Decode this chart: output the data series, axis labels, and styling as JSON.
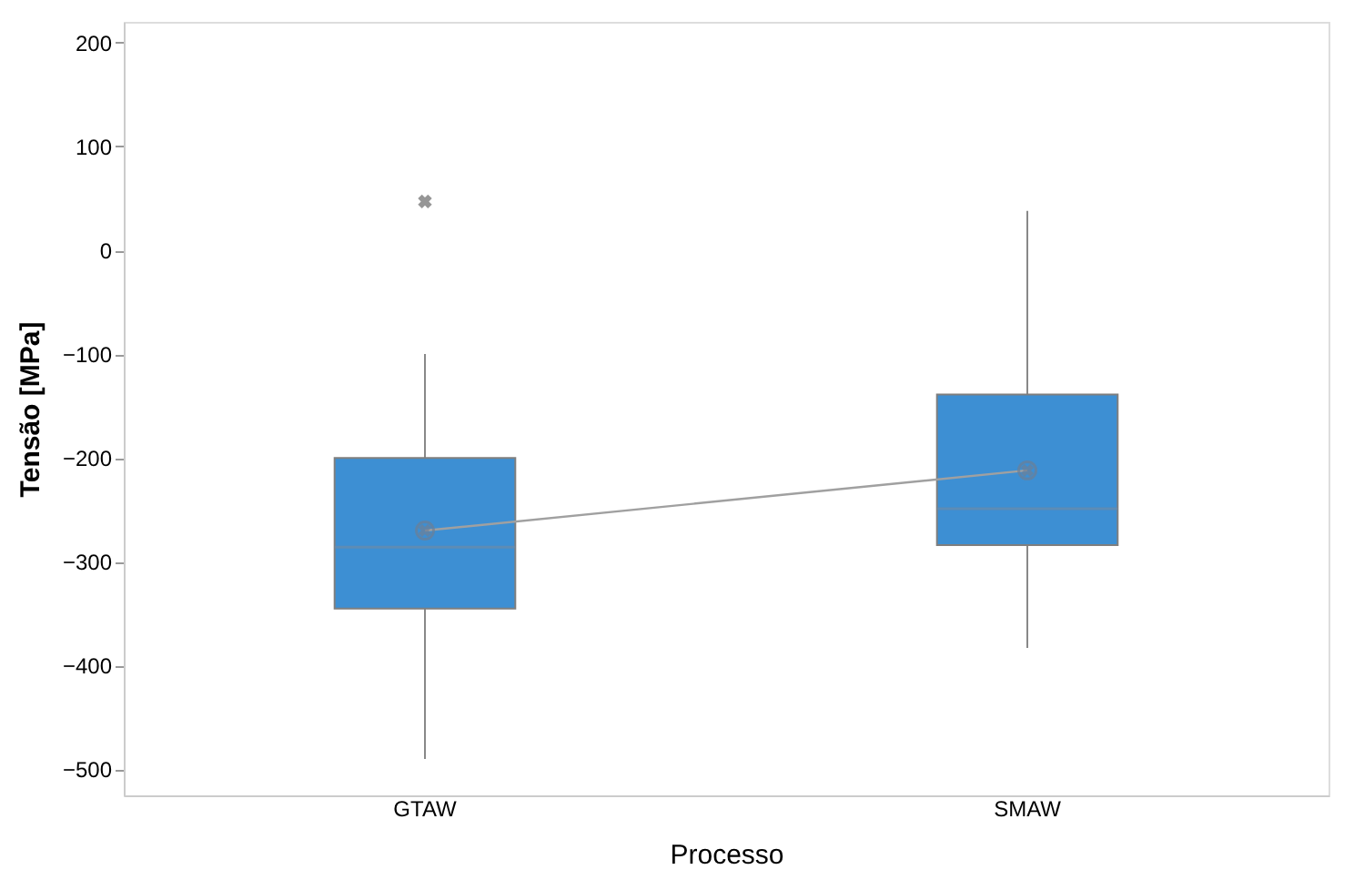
{
  "chart_data": {
    "type": "box",
    "xlabel": "Processo",
    "ylabel": "Tensão [MPa]",
    "categories": [
      "GTAW",
      "SMAW"
    ],
    "color": "#3d8fd3",
    "boxes": [
      {
        "low": -490,
        "q1": -345,
        "median": -286,
        "q3": -200,
        "high": -100,
        "mean": -270,
        "outliers": [
          47
        ]
      },
      {
        "low": -383,
        "q1": -284,
        "median": -249,
        "q3": -139,
        "high": 38,
        "mean": -212
      }
    ],
    "series": [
      {
        "type": "line",
        "color": "#a0a0a0",
        "values": [
          -270,
          -212
        ]
      }
    ],
    "ylim": [
      -525,
      220
    ],
    "yticks": [
      -500,
      -400,
      -300,
      -200,
      -100,
      0,
      100,
      200
    ]
  }
}
